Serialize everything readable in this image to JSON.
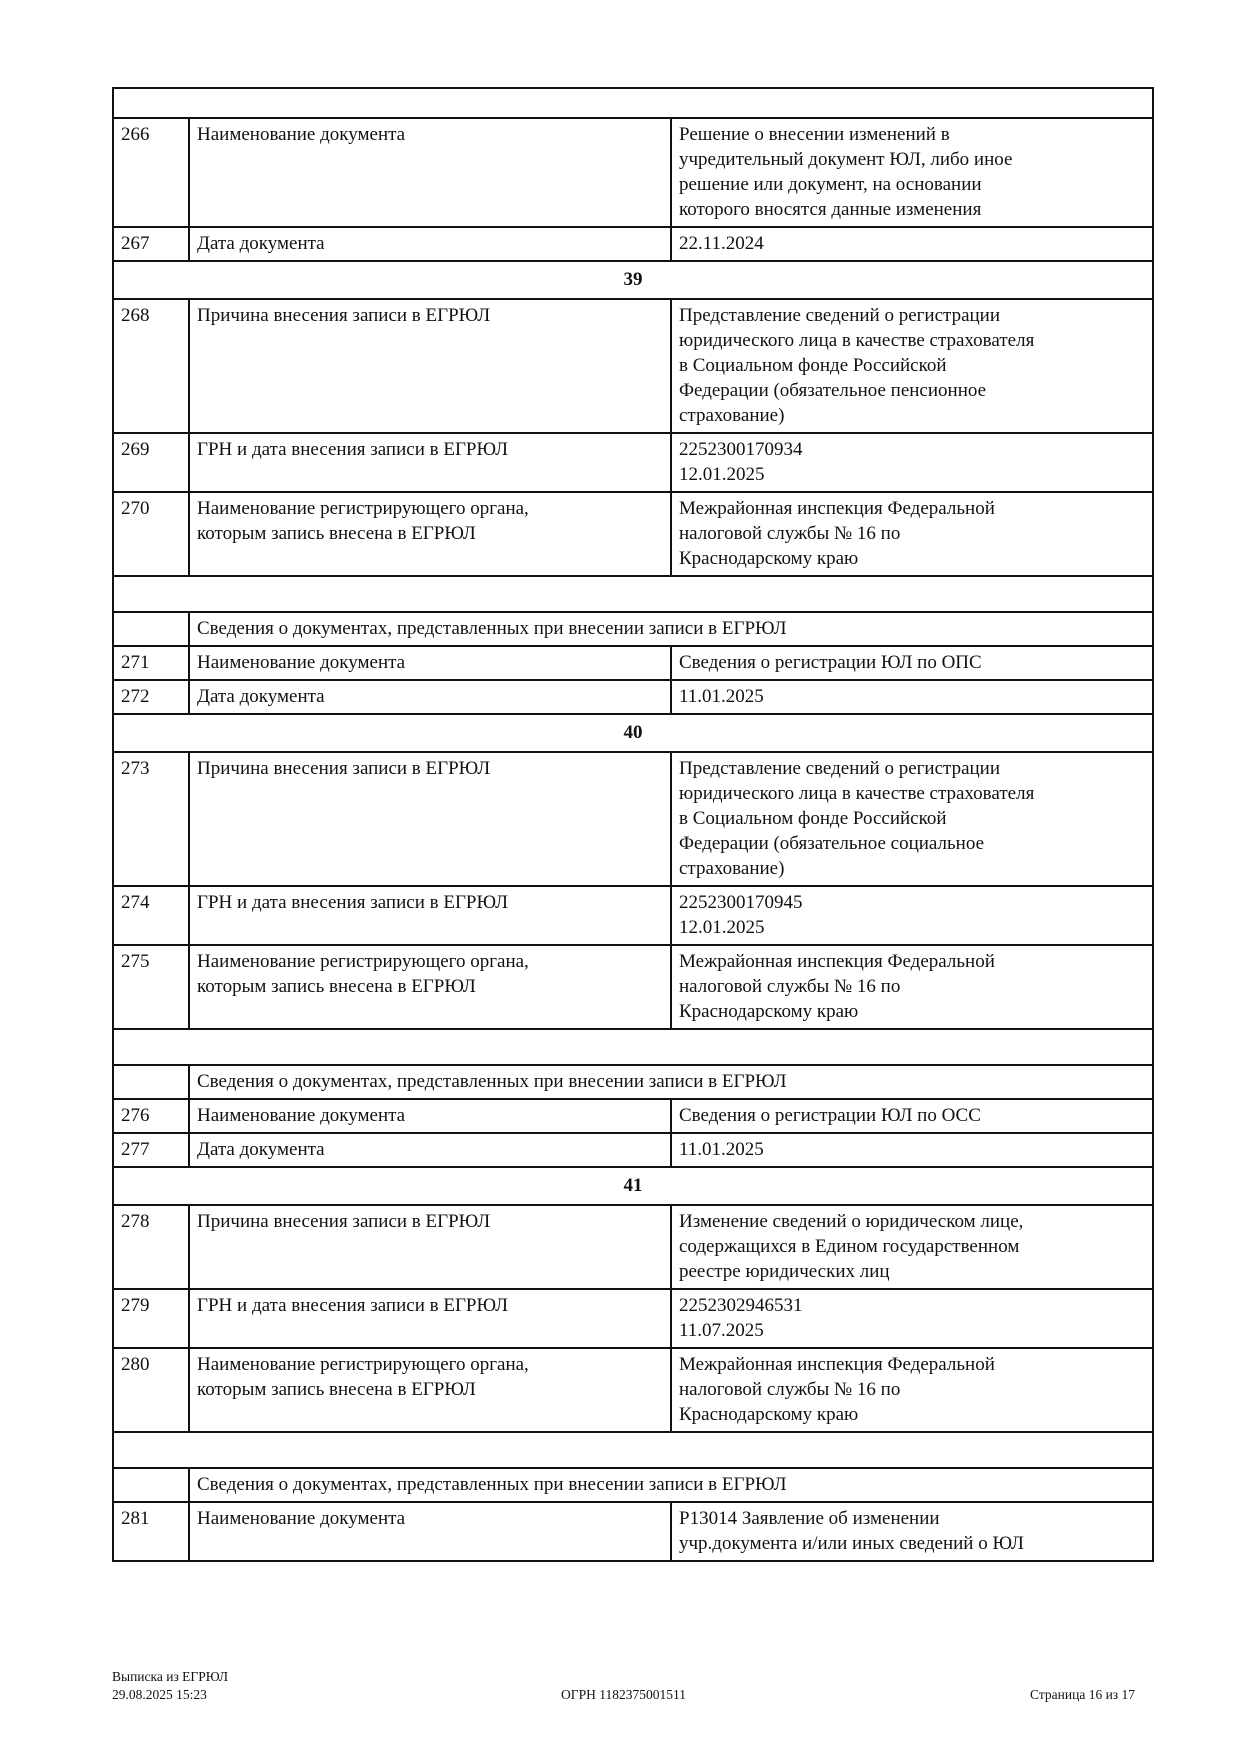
{
  "page": {
    "colors": {
      "background": "#ffffff",
      "text": "#111111",
      "border": "#111111"
    }
  },
  "table": {
    "doc_header_label": "Сведения о документах, представленных при внесении записи в ЕГРЮЛ",
    "rows": [
      {
        "type": "blank"
      },
      {
        "type": "row",
        "num": "266",
        "label": "Наименование документа",
        "value": "Решение о внесении изменений в\nучредительный документ ЮЛ, либо иное\nрешение или документ, на основании\nкоторого вносятся данные изменения"
      },
      {
        "type": "row",
        "num": "267",
        "label": "Дата документа",
        "value": "22.11.2024"
      },
      {
        "type": "section",
        "label": "39"
      },
      {
        "type": "row",
        "num": "268",
        "label": "Причина внесения записи в ЕГРЮЛ",
        "value": "Представление сведений о регистрации\nюридического лица в качестве страхователя\nв Социальном фонде Российской\nФедерации (обязательное пенсионное\nстрахование)"
      },
      {
        "type": "row",
        "num": "269",
        "label": "ГРН и дата внесения записи в ЕГРЮЛ",
        "value": "2252300170934\n12.01.2025"
      },
      {
        "type": "row",
        "num": "270",
        "label": "Наименование регистрирующего органа,\nкоторым запись внесена в ЕГРЮЛ",
        "value": "Межрайонная инспекция Федеральной\nналоговой службы № 16 по\nКраснодарскому краю"
      },
      {
        "type": "spacer"
      },
      {
        "type": "docheader"
      },
      {
        "type": "row",
        "num": "271",
        "label": "Наименование документа",
        "value": "Сведения о регистрации ЮЛ по ОПС"
      },
      {
        "type": "row",
        "num": "272",
        "label": "Дата документа",
        "value": "11.01.2025"
      },
      {
        "type": "section",
        "label": "40"
      },
      {
        "type": "row",
        "num": "273",
        "label": "Причина внесения записи в ЕГРЮЛ",
        "value": "Представление сведений о регистрации\nюридического лица в качестве страхователя\nв Социальном фонде Российской\nФедерации (обязательное социальное\nстрахование)"
      },
      {
        "type": "row",
        "num": "274",
        "label": "ГРН и дата внесения записи в ЕГРЮЛ",
        "value": "2252300170945\n12.01.2025"
      },
      {
        "type": "row",
        "num": "275",
        "label": "Наименование регистрирующего органа,\nкоторым запись внесена в ЕГРЮЛ",
        "value": "Межрайонная инспекция Федеральной\nналоговой службы № 16 по\nКраснодарскому краю"
      },
      {
        "type": "spacer"
      },
      {
        "type": "docheader"
      },
      {
        "type": "row",
        "num": "276",
        "label": "Наименование документа",
        "value": "Сведения о регистрации ЮЛ по ОСС"
      },
      {
        "type": "row",
        "num": "277",
        "label": "Дата документа",
        "value": "11.01.2025"
      },
      {
        "type": "section",
        "label": "41"
      },
      {
        "type": "row",
        "num": "278",
        "label": "Причина внесения записи в ЕГРЮЛ",
        "value": "Изменение сведений о юридическом лице,\nсодержащихся в Едином государственном\nреестре юридических лиц"
      },
      {
        "type": "row",
        "num": "279",
        "label": "ГРН и дата внесения записи в ЕГРЮЛ",
        "value": "2252302946531\n11.07.2025"
      },
      {
        "type": "row",
        "num": "280",
        "label": "Наименование регистрирующего органа,\nкоторым запись внесена в ЕГРЮЛ",
        "value": "Межрайонная инспекция Федеральной\nналоговой службы № 16 по\nКраснодарскому краю"
      },
      {
        "type": "spacer"
      },
      {
        "type": "docheader"
      },
      {
        "type": "row",
        "num": "281",
        "label": "Наименование документа",
        "value": "Р13014 Заявление об изменении\nучр.документа и/или иных сведений о ЮЛ"
      }
    ]
  },
  "footer": {
    "left_line1": "Выписка из ЕГРЮЛ",
    "left_line2": "29.08.2025 15:23",
    "center": "ОГРН 1182375001511",
    "right": "Страница 16 из 17"
  }
}
